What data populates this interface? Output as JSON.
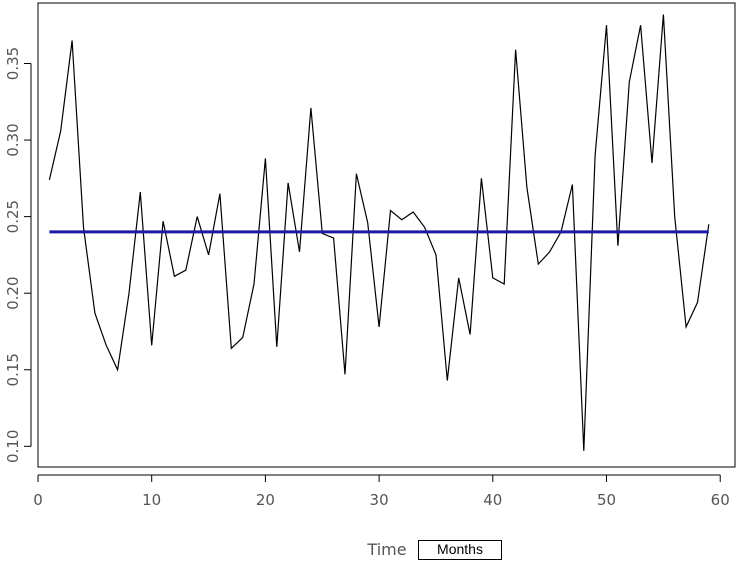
{
  "chart_data": {
    "type": "line",
    "title": "",
    "xlabel": "Time",
    "ylabel": "",
    "xlim": [
      0,
      61.3
    ],
    "ylim": [
      0.0865,
      0.3895
    ],
    "xticks": [
      0,
      10,
      20,
      30,
      40,
      50,
      60
    ],
    "yticks": [
      0.1,
      0.15,
      0.2,
      0.25,
      0.3,
      0.35
    ],
    "xtick_labels": [
      "0",
      "10",
      "20",
      "30",
      "40",
      "50",
      "60"
    ],
    "ytick_labels": [
      "0.10",
      "0.15",
      "0.20",
      "0.25",
      "0.30",
      "0.35"
    ],
    "grid": false,
    "series": [
      {
        "color": "#000000",
        "x": [
          1,
          2,
          3,
          4,
          5,
          6,
          7,
          8,
          9,
          10,
          11,
          12,
          13,
          14,
          15,
          16,
          17,
          18,
          19,
          20,
          21,
          22,
          23,
          24,
          25,
          26,
          27,
          28,
          29,
          30,
          31,
          32,
          33,
          34,
          35,
          36,
          37,
          38,
          39,
          40,
          41,
          42,
          43,
          44,
          45,
          46,
          47,
          48,
          49,
          50,
          51,
          52,
          53,
          54,
          55,
          56,
          57,
          58,
          59
        ],
        "y": [
          0.274,
          0.306,
          0.365,
          0.243,
          0.187,
          0.166,
          0.15,
          0.2,
          0.266,
          0.166,
          0.247,
          0.211,
          0.215,
          0.25,
          0.225,
          0.265,
          0.164,
          0.171,
          0.206,
          0.288,
          0.165,
          0.272,
          0.227,
          0.321,
          0.239,
          0.236,
          0.147,
          0.278,
          0.246,
          0.178,
          0.254,
          0.248,
          0.253,
          0.243,
          0.225,
          0.143,
          0.21,
          0.173,
          0.275,
          0.21,
          0.206,
          0.359,
          0.269,
          0.219,
          0.227,
          0.24,
          0.271,
          0.097,
          0.29,
          0.375,
          0.231,
          0.338,
          0.375,
          0.285,
          0.382,
          0.25,
          0.178,
          0.194,
          0.245
        ]
      },
      {
        "color": "#1a1aa6",
        "x": [
          1,
          59
        ],
        "y": [
          0.24,
          0.24
        ]
      }
    ]
  },
  "annotation": {
    "months_label": "Months"
  }
}
